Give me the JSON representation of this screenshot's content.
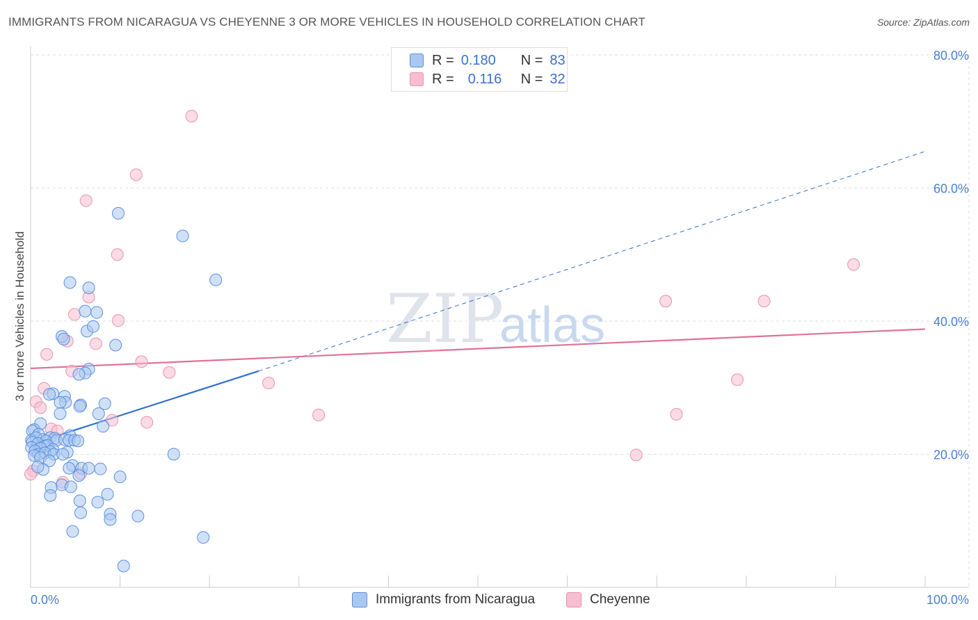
{
  "header": {
    "title": "IMMIGRANTS FROM NICARAGUA VS CHEYENNE 3 OR MORE VEHICLES IN HOUSEHOLD CORRELATION CHART",
    "source": "Source: ZipAtlas.com"
  },
  "watermark": {
    "zip": "ZIP",
    "atlas": "atlas"
  },
  "legend": {
    "rows": [
      {
        "r_label": "R =",
        "r_value": "0.180",
        "n_label": "N =",
        "n_value": "83"
      },
      {
        "r_label": "R =",
        "r_value": "0.116",
        "n_label": "N =",
        "n_value": "32"
      }
    ]
  },
  "bottom_legend": {
    "items": [
      {
        "label": "Immigrants from Nicaragua"
      },
      {
        "label": "Cheyenne"
      }
    ]
  },
  "colors": {
    "blue_fill": "#a9c8f0",
    "blue_stroke": "#5b8fdc",
    "blue_line": "#2e6fd1",
    "pink_fill": "#f7bdd0",
    "pink_stroke": "#e792b0",
    "pink_line": "#e0709a",
    "tick_text": "#4a7fd0",
    "grid": "#dddddd"
  },
  "chart_data": {
    "type": "scatter",
    "title": "IMMIGRANTS FROM NICARAGUA VS CHEYENNE 3 OR MORE VEHICLES IN HOUSEHOLD CORRELATION CHART",
    "xlabel": "",
    "ylabel": "3 or more Vehicles in Household",
    "xlim": [
      0,
      100
    ],
    "ylim": [
      0,
      82
    ],
    "x_tick_labels": [
      "0.0%",
      "100.0%"
    ],
    "y_ticks": [
      20,
      40,
      60,
      80
    ],
    "y_tick_labels": [
      "20.0%",
      "40.0%",
      "60.0%",
      "80.0%"
    ],
    "grid": true,
    "series": [
      {
        "name": "Immigrants from Nicaragua",
        "color": "#5b8fdc",
        "points": [
          [
            9.8,
            56.2
          ],
          [
            17,
            52.8
          ],
          [
            20.7,
            46.2
          ],
          [
            4.4,
            45.8
          ],
          [
            6.5,
            45
          ],
          [
            7.4,
            41.3
          ],
          [
            6.1,
            41.5
          ],
          [
            6.3,
            38.5
          ],
          [
            7,
            39.2
          ],
          [
            3.5,
            37.7
          ],
          [
            3.7,
            37.3
          ],
          [
            9.5,
            36.4
          ],
          [
            6.5,
            32.8
          ],
          [
            6.1,
            32.2
          ],
          [
            5.4,
            32
          ],
          [
            2.5,
            29.1
          ],
          [
            2.1,
            29
          ],
          [
            3.8,
            28.7
          ],
          [
            3.9,
            27.8
          ],
          [
            3.3,
            27.8
          ],
          [
            5.6,
            27.4
          ],
          [
            5.5,
            27.2
          ],
          [
            8.3,
            27.6
          ],
          [
            3.3,
            26.1
          ],
          [
            7.6,
            26.1
          ],
          [
            1.1,
            24.6
          ],
          [
            0.4,
            23.7
          ],
          [
            8.1,
            24.2
          ],
          [
            0.2,
            23.5
          ],
          [
            0.9,
            23
          ],
          [
            2.2,
            22.5
          ],
          [
            2.7,
            22.4
          ],
          [
            4.4,
            22.8
          ],
          [
            0.1,
            22.1
          ],
          [
            0.6,
            22.5
          ],
          [
            1.4,
            22.2
          ],
          [
            1.7,
            22
          ],
          [
            2.9,
            22.1
          ],
          [
            3.8,
            22.2
          ],
          [
            4.3,
            22.1
          ],
          [
            4.9,
            22.1
          ],
          [
            5.3,
            22
          ],
          [
            0.2,
            21.8
          ],
          [
            0.8,
            21.6
          ],
          [
            1.6,
            21.2
          ],
          [
            1.9,
            21.3
          ],
          [
            0.1,
            21
          ],
          [
            1.1,
            20.9
          ],
          [
            2.5,
            20.7
          ],
          [
            2.2,
            20.4
          ],
          [
            4.1,
            20.3
          ],
          [
            0.5,
            20.5
          ],
          [
            0.9,
            20
          ],
          [
            1.6,
            20.2
          ],
          [
            2.6,
            20
          ],
          [
            3.6,
            20
          ],
          [
            0.4,
            19.8
          ],
          [
            1.1,
            19.5
          ],
          [
            2.1,
            19
          ],
          [
            16,
            20
          ],
          [
            4.7,
            18.3
          ],
          [
            4.3,
            17.9
          ],
          [
            5.7,
            17.9
          ],
          [
            6.5,
            17.9
          ],
          [
            7.8,
            17.8
          ],
          [
            1.4,
            17.7
          ],
          [
            0.8,
            18.1
          ],
          [
            5.4,
            16.8
          ],
          [
            10,
            16.6
          ],
          [
            3.5,
            15.4
          ],
          [
            4.5,
            15.1
          ],
          [
            2.3,
            15
          ],
          [
            2.2,
            13.8
          ],
          [
            8.6,
            14
          ],
          [
            5.5,
            13
          ],
          [
            7.5,
            12.8
          ],
          [
            5.6,
            11.2
          ],
          [
            8.9,
            11
          ],
          [
            12,
            10.7
          ],
          [
            8.9,
            10.2
          ],
          [
            4.7,
            8.4
          ],
          [
            19.3,
            7.5
          ],
          [
            10.4,
            3.2
          ]
        ],
        "trend": {
          "x": [
            0,
            25.5
          ],
          "y": [
            21.5,
            32.5
          ]
        },
        "trend_extended": {
          "x": [
            25.5,
            100
          ],
          "y": [
            32.5,
            65.5
          ]
        }
      },
      {
        "name": "Cheyenne",
        "color": "#e792b0",
        "points": [
          [
            18,
            70.8
          ],
          [
            11.8,
            62
          ],
          [
            6.2,
            58.1
          ],
          [
            9.7,
            50
          ],
          [
            92,
            48.5
          ],
          [
            71,
            43
          ],
          [
            82,
            43
          ],
          [
            6.5,
            43.6
          ],
          [
            4.9,
            41
          ],
          [
            9.8,
            40.1
          ],
          [
            4.1,
            37
          ],
          [
            7.3,
            36.6
          ],
          [
            1.8,
            35
          ],
          [
            12.4,
            33.9
          ],
          [
            4.6,
            32.5
          ],
          [
            15.5,
            32.3
          ],
          [
            26.6,
            30.7
          ],
          [
            79,
            31.2
          ],
          [
            1.5,
            29.9
          ],
          [
            0.6,
            27.9
          ],
          [
            1.1,
            27
          ],
          [
            32.2,
            25.9
          ],
          [
            72.2,
            26
          ],
          [
            9.1,
            25.1
          ],
          [
            13,
            24.8
          ],
          [
            2.3,
            23.8
          ],
          [
            3,
            23.5
          ],
          [
            67.7,
            19.9
          ],
          [
            0.3,
            17.5
          ],
          [
            0,
            17
          ],
          [
            5.6,
            17.1
          ],
          [
            3.6,
            15.8
          ]
        ],
        "trend": {
          "x": [
            0,
            100
          ],
          "y": [
            32.9,
            38.8
          ]
        }
      }
    ]
  }
}
